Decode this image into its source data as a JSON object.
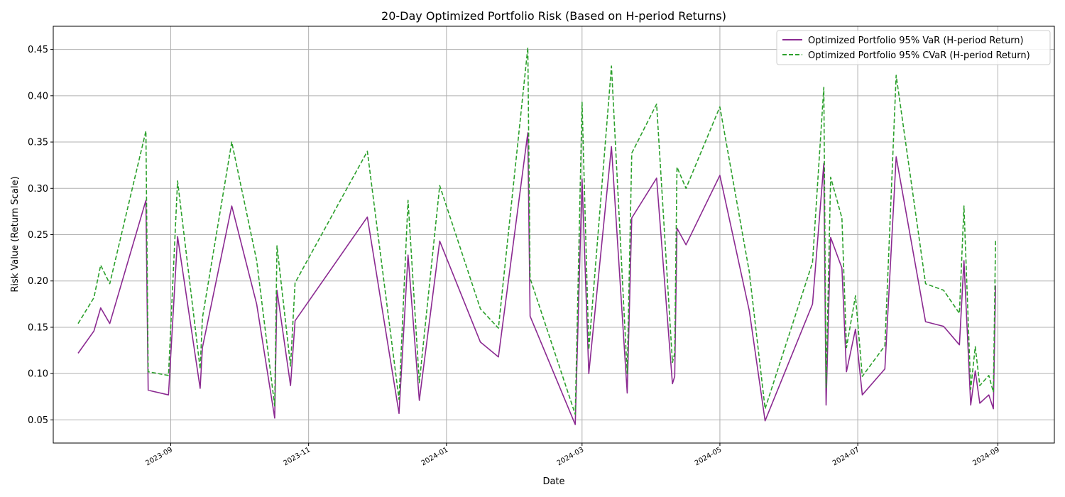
{
  "chart_data": {
    "type": "line",
    "title": "20-Day Optimized Portfolio Risk (Based on H-period Returns)",
    "xlabel": "Date",
    "ylabel": "Risk Value (Return Scale)",
    "ylim": [
      0.025,
      0.475
    ],
    "xlim": [
      "2023-07-11",
      "2024-09-26"
    ],
    "yticks": [
      0.05,
      0.1,
      0.15,
      0.2,
      0.25,
      0.3,
      0.35,
      0.4,
      0.45
    ],
    "ytick_labels": [
      "0.05",
      "0.10",
      "0.15",
      "0.20",
      "0.25",
      "0.30",
      "0.35",
      "0.40",
      "0.45"
    ],
    "xticks": [
      "2023-09-01",
      "2023-11-01",
      "2024-01-01",
      "2024-03-01",
      "2024-05-01",
      "2024-07-01",
      "2024-09-01"
    ],
    "xtick_labels": [
      "2023-09",
      "2023-11",
      "2024-01",
      "2024-03",
      "2024-05",
      "2024-07",
      "2024-09"
    ],
    "grid": true,
    "legend_position": "top-right",
    "series": [
      {
        "name": "Optimized Portfolio 95% VaR (H-period Return)",
        "color": "#8b2a91",
        "dash": "solid",
        "points": [
          [
            "2023-07-22",
            0.122
          ],
          [
            "2023-07-29",
            0.146
          ],
          [
            "2023-08-01",
            0.171
          ],
          [
            "2023-08-05",
            0.154
          ],
          [
            "2023-08-21",
            0.287
          ],
          [
            "2023-08-22",
            0.082
          ],
          [
            "2023-08-31",
            0.077
          ],
          [
            "2023-09-04",
            0.248
          ],
          [
            "2023-09-14",
            0.084
          ],
          [
            "2023-09-15",
            0.128
          ],
          [
            "2023-09-28",
            0.281
          ],
          [
            "2023-10-09",
            0.175
          ],
          [
            "2023-10-17",
            0.052
          ],
          [
            "2023-10-18",
            0.19
          ],
          [
            "2023-10-24",
            0.087
          ],
          [
            "2023-10-26",
            0.157
          ],
          [
            "2023-11-27",
            0.269
          ],
          [
            "2023-12-11",
            0.057
          ],
          [
            "2023-12-15",
            0.228
          ],
          [
            "2023-12-20",
            0.071
          ],
          [
            "2023-12-29",
            0.243
          ],
          [
            "2024-01-16",
            0.134
          ],
          [
            "2024-01-24",
            0.118
          ],
          [
            "2024-02-06",
            0.36
          ],
          [
            "2024-02-07",
            0.162
          ],
          [
            "2024-02-27",
            0.045
          ],
          [
            "2024-03-01",
            0.31
          ],
          [
            "2024-03-04",
            0.1
          ],
          [
            "2024-03-14",
            0.345
          ],
          [
            "2024-03-21",
            0.079
          ],
          [
            "2024-03-23",
            0.268
          ],
          [
            "2024-04-03",
            0.311
          ],
          [
            "2024-04-10",
            0.089
          ],
          [
            "2024-04-11",
            0.097
          ],
          [
            "2024-04-12",
            0.257
          ],
          [
            "2024-04-16",
            0.239
          ],
          [
            "2024-05-01",
            0.314
          ],
          [
            "2024-05-14",
            0.168
          ],
          [
            "2024-05-21",
            0.049
          ],
          [
            "2024-06-11",
            0.175
          ],
          [
            "2024-06-16",
            0.327
          ],
          [
            "2024-06-17",
            0.066
          ],
          [
            "2024-06-19",
            0.247
          ],
          [
            "2024-06-24",
            0.214
          ],
          [
            "2024-06-26",
            0.102
          ],
          [
            "2024-06-30",
            0.148
          ],
          [
            "2024-07-03",
            0.077
          ],
          [
            "2024-07-13",
            0.105
          ],
          [
            "2024-07-18",
            0.334
          ],
          [
            "2024-07-31",
            0.156
          ],
          [
            "2024-08-08",
            0.151
          ],
          [
            "2024-08-15",
            0.131
          ],
          [
            "2024-08-17",
            0.222
          ],
          [
            "2024-08-20",
            0.066
          ],
          [
            "2024-08-22",
            0.103
          ],
          [
            "2024-08-24",
            0.068
          ],
          [
            "2024-08-28",
            0.077
          ],
          [
            "2024-08-30",
            0.062
          ],
          [
            "2024-08-31",
            0.195
          ]
        ]
      },
      {
        "name": "Optimized Portfolio 95% CVaR (H-period Return)",
        "color": "#2ca02c",
        "dash": "dashed",
        "points": [
          [
            "2023-07-22",
            0.154
          ],
          [
            "2023-07-29",
            0.182
          ],
          [
            "2023-08-01",
            0.217
          ],
          [
            "2023-08-05",
            0.197
          ],
          [
            "2023-08-21",
            0.362
          ],
          [
            "2023-08-22",
            0.102
          ],
          [
            "2023-08-31",
            0.098
          ],
          [
            "2023-09-04",
            0.308
          ],
          [
            "2023-09-14",
            0.105
          ],
          [
            "2023-09-15",
            0.16
          ],
          [
            "2023-09-28",
            0.35
          ],
          [
            "2023-10-09",
            0.222
          ],
          [
            "2023-10-17",
            0.065
          ],
          [
            "2023-10-18",
            0.238
          ],
          [
            "2023-10-24",
            0.108
          ],
          [
            "2023-10-26",
            0.198
          ],
          [
            "2023-11-27",
            0.34
          ],
          [
            "2023-12-11",
            0.072
          ],
          [
            "2023-12-15",
            0.287
          ],
          [
            "2023-12-20",
            0.09
          ],
          [
            "2023-12-29",
            0.303
          ],
          [
            "2024-01-16",
            0.17
          ],
          [
            "2024-01-24",
            0.149
          ],
          [
            "2024-02-06",
            0.452
          ],
          [
            "2024-02-07",
            0.203
          ],
          [
            "2024-02-27",
            0.056
          ],
          [
            "2024-03-01",
            0.393
          ],
          [
            "2024-03-04",
            0.126
          ],
          [
            "2024-03-14",
            0.432
          ],
          [
            "2024-03-21",
            0.1
          ],
          [
            "2024-03-23",
            0.338
          ],
          [
            "2024-04-03",
            0.391
          ],
          [
            "2024-04-10",
            0.112
          ],
          [
            "2024-04-11",
            0.122
          ],
          [
            "2024-04-12",
            0.323
          ],
          [
            "2024-04-16",
            0.3
          ],
          [
            "2024-05-01",
            0.388
          ],
          [
            "2024-05-14",
            0.21
          ],
          [
            "2024-05-21",
            0.062
          ],
          [
            "2024-06-11",
            0.22
          ],
          [
            "2024-06-16",
            0.409
          ],
          [
            "2024-06-17",
            0.085
          ],
          [
            "2024-06-19",
            0.312
          ],
          [
            "2024-06-24",
            0.268
          ],
          [
            "2024-06-26",
            0.128
          ],
          [
            "2024-06-30",
            0.184
          ],
          [
            "2024-07-03",
            0.097
          ],
          [
            "2024-07-13",
            0.13
          ],
          [
            "2024-07-18",
            0.422
          ],
          [
            "2024-07-31",
            0.197
          ],
          [
            "2024-08-08",
            0.19
          ],
          [
            "2024-08-15",
            0.165
          ],
          [
            "2024-08-17",
            0.281
          ],
          [
            "2024-08-20",
            0.083
          ],
          [
            "2024-08-22",
            0.129
          ],
          [
            "2024-08-24",
            0.087
          ],
          [
            "2024-08-28",
            0.098
          ],
          [
            "2024-08-30",
            0.08
          ],
          [
            "2024-08-31",
            0.244
          ]
        ]
      }
    ]
  }
}
